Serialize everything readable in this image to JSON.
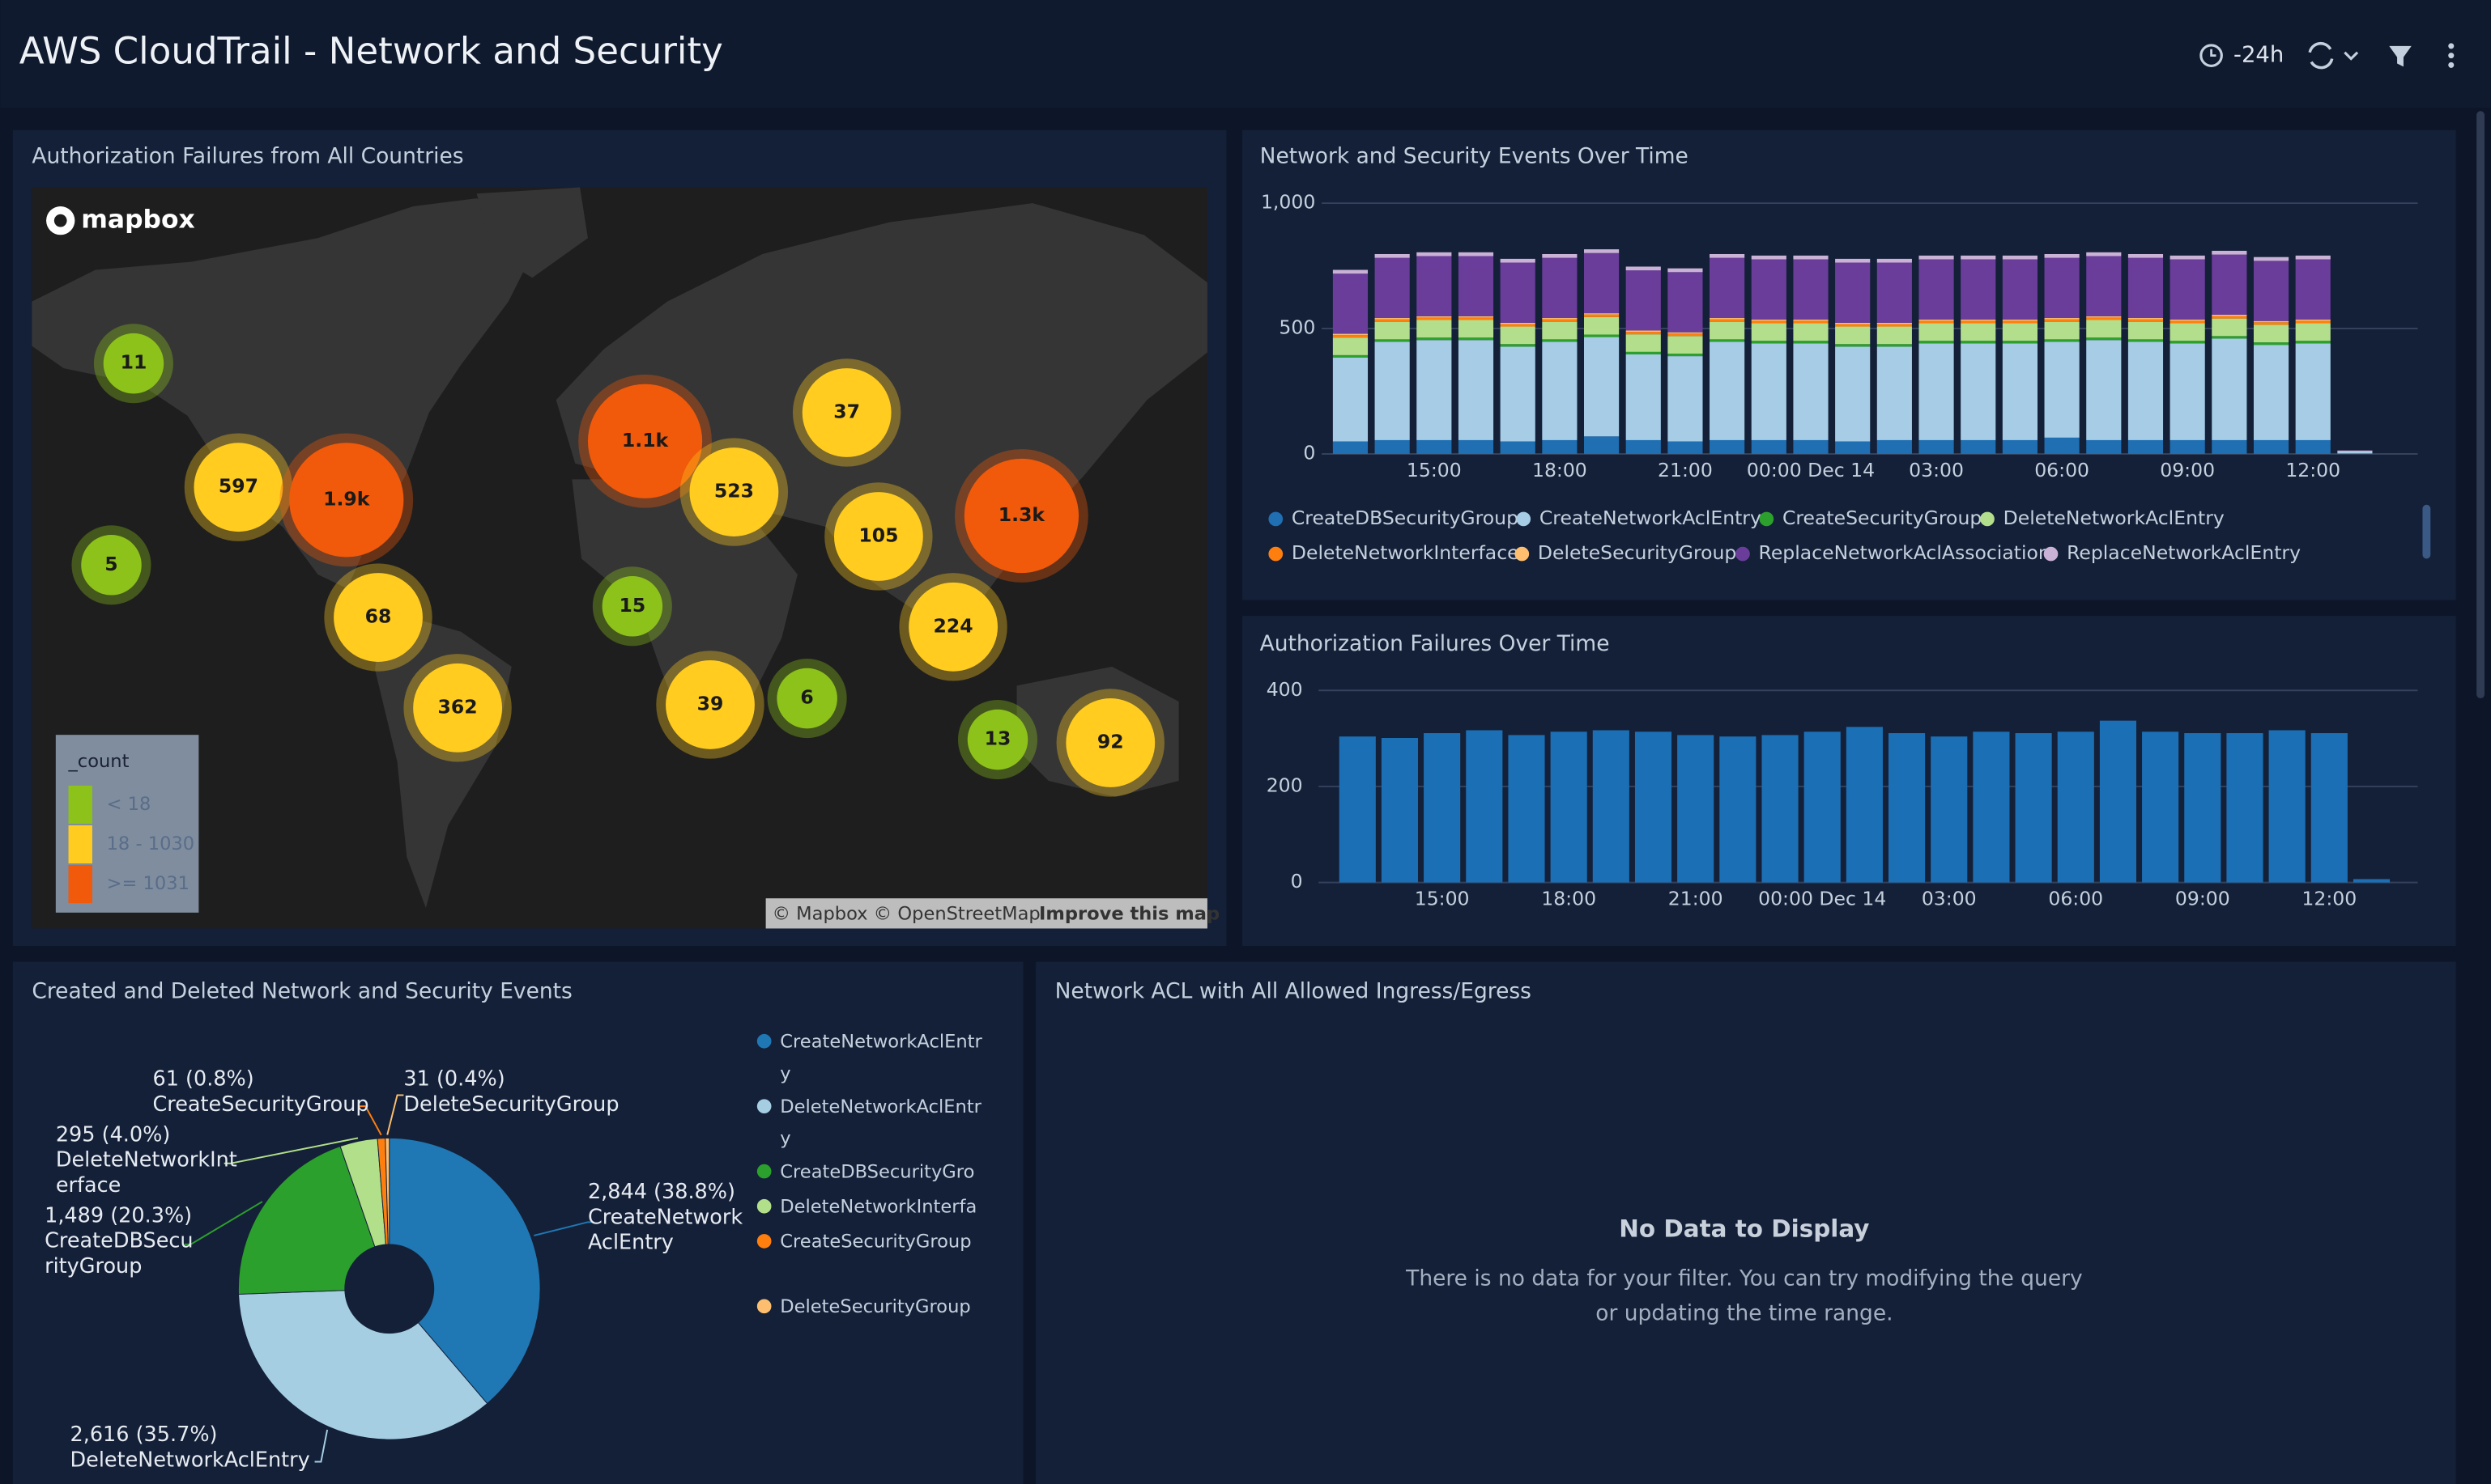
{
  "header": {
    "title": "AWS CloudTrail - Network and Security",
    "time_range": "-24h"
  },
  "chart_data": [
    {
      "type": "bubble-map",
      "title": "Authorization Failures from All Countries",
      "logo": "mapbox",
      "values": [
        11,
        597,
        1900,
        5,
        68,
        362,
        1100,
        523,
        37,
        15,
        39,
        6,
        105,
        224,
        1300,
        13,
        92
      ],
      "value_labels": [
        "11",
        "597",
        "1.9k",
        "5",
        "68",
        "362",
        "1.1k",
        "523",
        "37",
        "15",
        "39",
        "6",
        "105",
        "224",
        "1.3k",
        "13",
        "92"
      ],
      "colors": [
        "#8cc21a",
        "#ffcc1f",
        "#f05a0a",
        "#8cc21a",
        "#ffcc1f",
        "#ffcc1f",
        "#f05a0a",
        "#ffcc1f",
        "#ffcc1f",
        "#8cc21a",
        "#ffcc1f",
        "#8cc21a",
        "#ffcc1f",
        "#ffcc1f",
        "#f05a0a",
        "#8cc21a",
        "#ffcc1f"
      ],
      "legend_title": "_count",
      "legend": [
        {
          "label": "< 18",
          "color": "#8cc21a"
        },
        {
          "label": "18 - 1030",
          "color": "#ffcc1f"
        },
        {
          "label": ">= 1031",
          "color": "#f05a0a"
        }
      ],
      "attribution": "© Mapbox © OpenStreetMap",
      "attribution_link": "Improve this map"
    },
    {
      "type": "stacked-bar",
      "title": "Network and Security Events Over Time",
      "categories": [
        null,
        null,
        "15:00",
        null,
        null,
        "18:00",
        null,
        null,
        "21:00",
        null,
        null,
        "00:00 Dec 14",
        null,
        null,
        "03:00",
        null,
        null,
        "06:00",
        null,
        null,
        "09:00",
        null,
        null,
        "12:00",
        null
      ],
      "series": [
        {
          "name": "CreateDBSecurityGroup",
          "color": "#1f6fb2",
          "values": [
            50,
            55,
            55,
            55,
            50,
            55,
            70,
            55,
            50,
            55,
            55,
            55,
            50,
            55,
            55,
            55,
            55,
            65,
            55,
            55,
            55,
            55,
            55,
            55,
            2
          ]
        },
        {
          "name": "CreateNetworkAclEntry",
          "color": "#a7cce6",
          "values": [
            334,
            392,
            399,
            399,
            378,
            392,
            396,
            342,
            340,
            392,
            386,
            386,
            378,
            373,
            386,
            386,
            386,
            382,
            399,
            392,
            386,
            405,
            380,
            386,
            8
          ]
        },
        {
          "name": "CreateSecurityGroup",
          "color": "#2ca02c",
          "values": [
            10,
            10,
            10,
            10,
            10,
            10,
            10,
            10,
            10,
            10,
            10,
            10,
            10,
            10,
            10,
            10,
            10,
            10,
            10,
            10,
            10,
            10,
            10,
            10,
            0
          ]
        },
        {
          "name": "DeleteNetworkAclEntry",
          "color": "#b3df8c",
          "values": [
            70,
            70,
            70,
            70,
            70,
            70,
            70,
            70,
            70,
            70,
            70,
            70,
            70,
            70,
            70,
            70,
            70,
            70,
            70,
            70,
            70,
            70,
            70,
            70,
            3
          ]
        },
        {
          "name": "DeleteNetworkInterface",
          "color": "#ff7f0e",
          "values": [
            10,
            10,
            10,
            10,
            10,
            10,
            10,
            10,
            10,
            10,
            10,
            10,
            10,
            10,
            10,
            10,
            10,
            10,
            10,
            10,
            10,
            10,
            10,
            10,
            0
          ]
        },
        {
          "name": "DeleteSecurityGroup",
          "color": "#fdbf6f",
          "values": [
            5,
            5,
            5,
            5,
            5,
            5,
            5,
            5,
            5,
            5,
            5,
            5,
            5,
            5,
            5,
            5,
            5,
            5,
            5,
            5,
            5,
            5,
            5,
            5,
            0
          ]
        },
        {
          "name": "ReplaceNetworkAclAssociation",
          "color": "#6a3d9a",
          "values": [
            240,
            240,
            240,
            240,
            240,
            240,
            240,
            240,
            240,
            240,
            240,
            240,
            240,
            240,
            240,
            240,
            240,
            240,
            240,
            240,
            240,
            240,
            240,
            240,
            2
          ]
        },
        {
          "name": "ReplaceNetworkAclEntry",
          "color": "#cab2d6",
          "values": [
            15,
            15,
            15,
            15,
            15,
            15,
            15,
            15,
            15,
            15,
            15,
            15,
            15,
            15,
            15,
            15,
            15,
            15,
            15,
            15,
            15,
            15,
            15,
            15,
            0
          ]
        }
      ],
      "ylim": [
        0,
        1000
      ],
      "yticks": [
        0,
        500,
        {
          "value": 1000,
          "label": "1,000"
        }
      ],
      "grid": true
    },
    {
      "type": "bar",
      "title": "Authorization Failures Over Time",
      "categories": [
        null,
        null,
        "15:00",
        null,
        null,
        "18:00",
        null,
        null,
        "21:00",
        null,
        null,
        "00:00 Dec 14",
        null,
        null,
        "03:00",
        null,
        null,
        "06:00",
        null,
        null,
        "09:00",
        null,
        null,
        "12:00",
        null
      ],
      "values": [
        304,
        301,
        311,
        317,
        307,
        314,
        317,
        314,
        307,
        304,
        307,
        314,
        324,
        311,
        304,
        314,
        311,
        314,
        337,
        314,
        311,
        311,
        317,
        311,
        7
      ],
      "color": "#1b6fb5",
      "ylim": [
        0,
        400
      ],
      "yticks": [
        0,
        200,
        400
      ],
      "grid": true
    },
    {
      "type": "donut",
      "title": "Created and Deleted Network and Security Events",
      "categories": [
        "CreateNetworkAclEntry",
        "DeleteNetworkAclEntry",
        "CreateDBSecurityGroup",
        "DeleteNetworkInterface",
        "CreateSecurityGroup",
        "DeleteSecurityGroup"
      ],
      "values": [
        2844,
        2616,
        1489,
        295,
        61,
        31
      ],
      "value_labels": [
        "2,844 (38.8%)",
        "2,616 (35.7%)",
        "1,489 (20.3%)",
        "295 (4.0%)",
        "61 (0.8%)",
        "31 (0.4%)"
      ],
      "colors": [
        "#1f78b4",
        "#a6cee3",
        "#2ca02c",
        "#b2df8a",
        "#ff7f0e",
        "#fdbf6f"
      ]
    }
  ],
  "empty_panel": {
    "title": "Network ACL with All Allowed Ingress/Egress",
    "message": "No Data to Display",
    "detail": [
      "There is no data for your filter. You can try modifying the query",
      "or updating the time range."
    ]
  }
}
